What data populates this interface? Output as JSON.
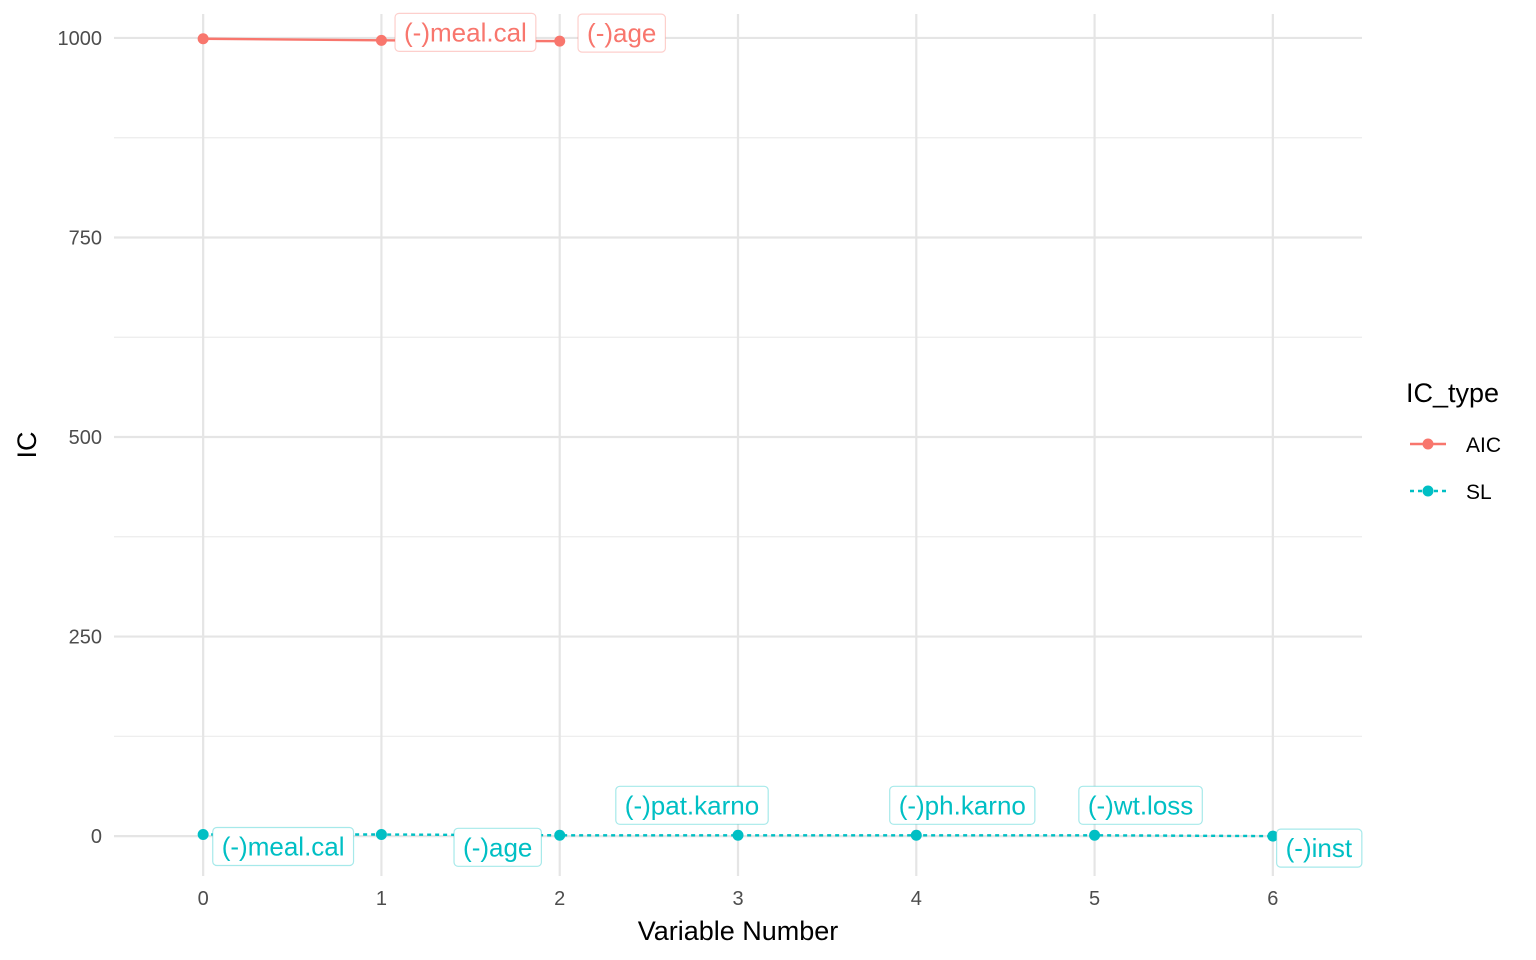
{
  "chart_data": {
    "type": "line",
    "xlabel": "Variable Number",
    "ylabel": "IC",
    "xlim": [
      -0.5,
      6.5
    ],
    "ylim": [
      -50,
      1030
    ],
    "x_ticks": [
      0,
      1,
      2,
      3,
      4,
      5,
      6
    ],
    "x_tick_labels": [
      "0",
      "1",
      "2",
      "3",
      "4",
      "5",
      "6"
    ],
    "y_ticks": [
      0,
      250,
      500,
      750,
      1000
    ],
    "y_tick_labels": [
      "0",
      "250",
      "500",
      "750",
      "1000"
    ],
    "y_minor_ticks": [
      125,
      375,
      625,
      875
    ],
    "grid": true,
    "legend": {
      "title": "IC_type",
      "position": "right"
    },
    "series": [
      {
        "name": "AIC",
        "color": "#F8766D",
        "line_style": "solid",
        "x": [
          0,
          1,
          2
        ],
        "y": [
          999,
          997,
          996
        ],
        "labels": [
          "",
          "(-)meal.cal",
          "(-)age"
        ]
      },
      {
        "name": "SL",
        "color": "#00BFC4",
        "line_style": "dashed",
        "x": [
          0,
          1,
          2,
          3,
          4,
          5,
          6
        ],
        "y": [
          2,
          2,
          1,
          1,
          1,
          1,
          0
        ],
        "labels": [
          "(-)meal.cal",
          "",
          "(-)age",
          "(-)pat.karno",
          "(-)ph.karno",
          "(-)wt.loss",
          "(-)inst"
        ]
      }
    ]
  }
}
